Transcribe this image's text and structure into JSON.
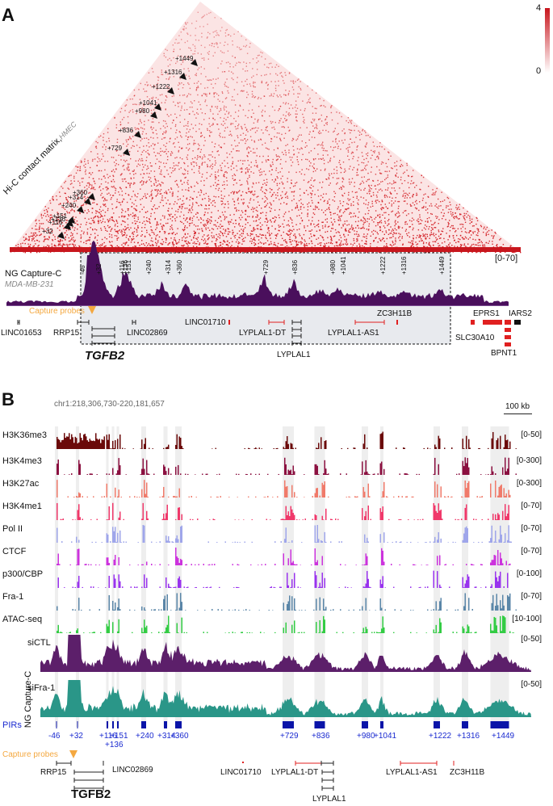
{
  "panelA": {
    "letter": "A",
    "hic_label": "Hi-C contact matrix,",
    "hic_cell": "HMEC",
    "colorbar": {
      "max": "4",
      "min": "0",
      "color_high": "#c8161d",
      "color_low": "#ffffff"
    },
    "arrowheads": [
      "+32",
      "+116",
      "+136",
      "+151",
      "+240",
      "+314",
      "+360",
      "+729",
      "+836",
      "+980",
      "+1041",
      "+1222",
      "+1316",
      "+1449"
    ],
    "capture_track": {
      "title": "NG Capture-C",
      "cell": "MDA-MB-231",
      "range": "[0-70]",
      "color": "#4a0f5c"
    },
    "pir_labels": [
      "-46",
      "+32",
      "+116",
      "+136",
      "+151",
      "+240",
      "+314",
      "+360",
      "+729",
      "+836",
      "+980",
      "+1041",
      "+1222",
      "+1316",
      "+1449"
    ],
    "capture_probes_label": "Capture probes",
    "genes": [
      "LINC01653",
      "RRP15",
      "TGFB2",
      "LINC02869",
      "LINC01710",
      "LYPLAL1-DT",
      "LYPLAL1",
      "LYPLAL1-AS1",
      "ZC3H11B",
      "EPRS1",
      "IARS2",
      "SLC30A10",
      "BPNT1"
    ]
  },
  "panelB": {
    "letter": "B",
    "locus": "chr1:218,306,730-220,181,657",
    "scale_bar": "100 kb",
    "tracks": [
      {
        "name": "H3K36me3",
        "range": "[0-50]",
        "color": "#6b0a0a"
      },
      {
        "name": "H3K4me3",
        "range": "[0-300]",
        "color": "#8b1040"
      },
      {
        "name": "H3K27ac",
        "range": "[0-300]",
        "color": "#f07a6a"
      },
      {
        "name": "H3K4me1",
        "range": "[0-70]",
        "color": "#f0386a"
      },
      {
        "name": "Pol II",
        "range": "[0-70]",
        "color": "#9fa6ea"
      },
      {
        "name": "CTCF",
        "range": "[0-70]",
        "color": "#cc33dd"
      },
      {
        "name": "p300/CBP",
        "range": "[0-100]",
        "color": "#9933ee"
      },
      {
        "name": "Fra-1",
        "range": "[0-70]",
        "color": "#5a86a8"
      },
      {
        "name": "ATAC-seq",
        "range": "[10-100]",
        "color": "#33cc44"
      }
    ],
    "capture_group_label": "NG Capture-C",
    "capture_tracks": [
      {
        "name": "siCTL",
        "range": "[0-50]",
        "color": "#5c1f6a"
      },
      {
        "name": "siFra-1",
        "range": "[0-50]",
        "color": "#2a9688"
      }
    ],
    "pirs_label": "PIRs",
    "pir_color": "#0a14a8",
    "pir_labels": [
      "-46",
      "+32",
      "+116",
      "+136",
      "+151",
      "+240",
      "+314",
      "+360",
      "+729",
      "+836",
      "+980",
      "+1041",
      "+1222",
      "+1316",
      "+1449"
    ],
    "capture_probes_label": "Capture probes",
    "genes": [
      "RRP15",
      "TGFB2",
      "LINC02869",
      "LINC01710",
      "LYPLAL1-DT",
      "LYPLAL1",
      "LYPLAL1-AS1",
      "ZC3H11B"
    ]
  }
}
